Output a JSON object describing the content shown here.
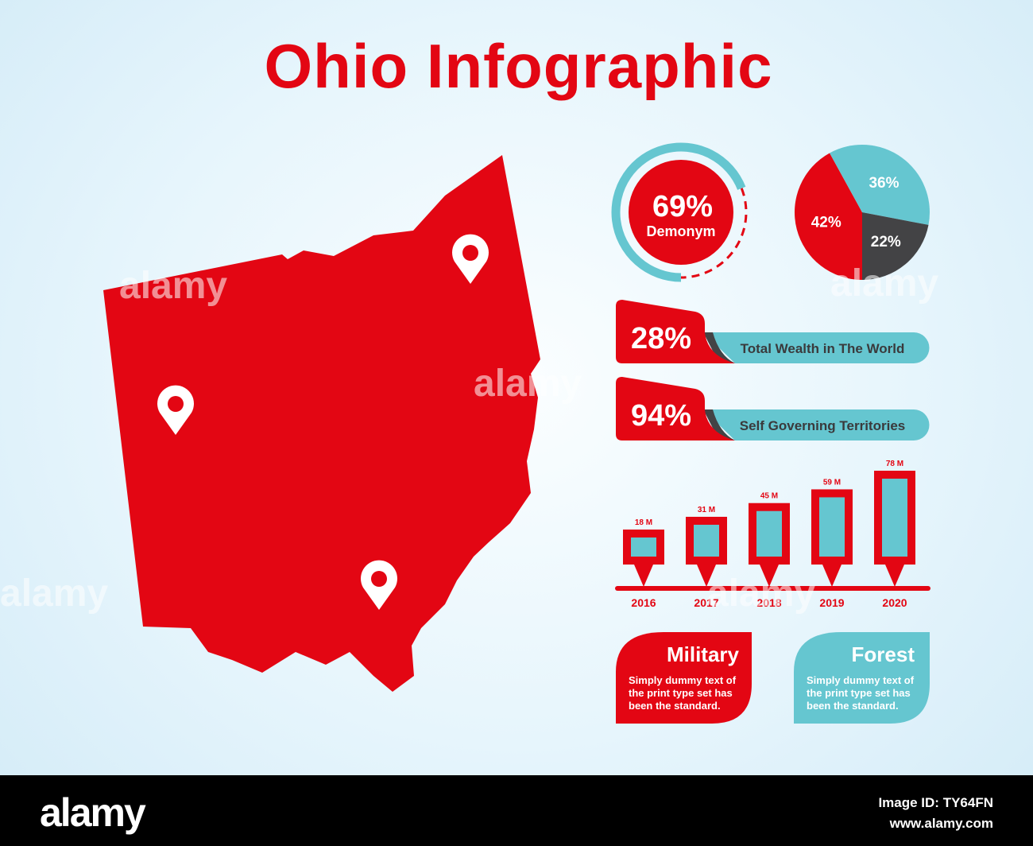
{
  "title": "Ohio Infographic",
  "colors": {
    "red": "#e30613",
    "teal": "#65c6d0",
    "dark": "#434345",
    "background": "#e6f5fc"
  },
  "map": {
    "state": "Ohio",
    "pins": 3,
    "pin_icon": "map-pin-icon"
  },
  "ring_stat": {
    "value": "69%",
    "label": "Demonym",
    "percent": 69
  },
  "stats": [
    {
      "value": "28%",
      "label": "Total Wealth in The World"
    },
    {
      "value": "94%",
      "label": "Self Governing Territories"
    }
  ],
  "cards": [
    {
      "title": "Military",
      "text": "Simply dummy text of the print type set has been the standard.",
      "color": "#e30613"
    },
    {
      "title": "Forest",
      "text": "Simply dummy text of the print type set has been the standard.",
      "color": "#65c6d0"
    }
  ],
  "chart_data": [
    {
      "type": "pie",
      "slices": [
        {
          "label": "42%",
          "value": 42,
          "color": "#e30613"
        },
        {
          "label": "36%",
          "value": 36,
          "color": "#65c6d0"
        },
        {
          "label": "22%",
          "value": 22,
          "color": "#434345"
        }
      ]
    },
    {
      "type": "bar",
      "categories": [
        "2016",
        "2017",
        "2018",
        "2019",
        "2020"
      ],
      "values": [
        18,
        31,
        45,
        59,
        78
      ],
      "data_labels": [
        "18 M",
        "31 M",
        "45 M",
        "59 M",
        "78 M"
      ],
      "unit": "M"
    }
  ],
  "watermark": "alamy",
  "footer": {
    "logo": "alamy",
    "image_id": "Image ID: TY64FN",
    "url": "www.alamy.com"
  }
}
